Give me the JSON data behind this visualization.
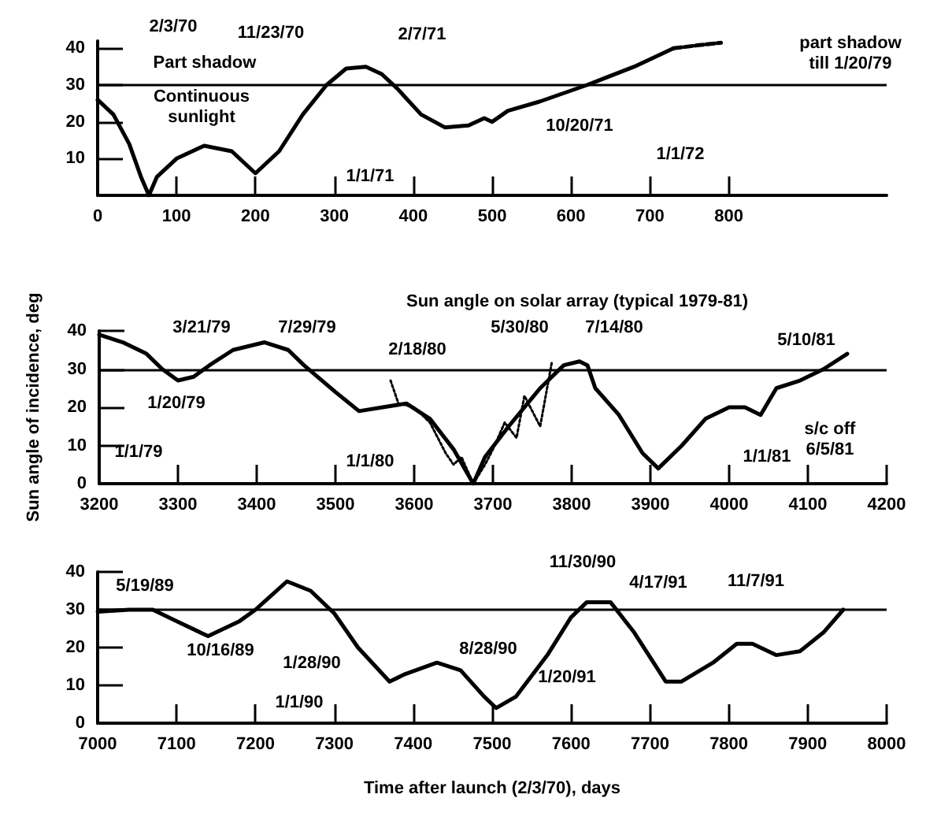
{
  "chart_data": [
    {
      "type": "line",
      "marker": "none",
      "ylim": [
        0,
        42
      ],
      "yticks": [
        10,
        20,
        30,
        40
      ],
      "xlim": [
        0,
        1000
      ],
      "xticks": [
        0,
        100,
        200,
        300,
        400,
        500,
        600,
        700,
        800
      ],
      "x": [
        0,
        20,
        40,
        55,
        65,
        75,
        100,
        135,
        170,
        200,
        230,
        260,
        290,
        315,
        340,
        360,
        380,
        410,
        440,
        470,
        490,
        500,
        520,
        560,
        620,
        680,
        730
      ],
      "series": [
        {
          "color": "#000000",
          "line_style": "solid",
          "values": [
            26,
            22,
            14,
            5,
            0,
            5,
            10,
            13.5,
            12,
            6,
            12,
            22,
            30,
            34.5,
            35,
            33,
            29,
            22,
            18.5,
            19,
            21,
            20,
            23,
            25.5,
            30,
            35,
            40
          ]
        },
        {
          "color": "#000000",
          "line_style": "dashed",
          "x": [
            730,
            760,
            790
          ],
          "values": [
            40,
            40.8,
            41.5
          ]
        }
      ],
      "ref_lines": [
        {
          "axis": "y",
          "value": 30
        }
      ],
      "annotations": [
        "2/3/70",
        "11/23/70",
        "2/7/71",
        "Part shadow",
        "Continuous\nsunlight",
        "10/20/71",
        "1/1/71",
        "1/1/72",
        "part shadow\ntill 1/20/79"
      ]
    },
    {
      "type": "line",
      "marker": "none",
      "title": "Sun angle on solar array (typical 1979-81)",
      "ylabel": "Sun angle of incidence, deg",
      "ylim": [
        0,
        40
      ],
      "yticks": [
        0,
        10,
        20,
        30,
        40
      ],
      "xlim": [
        3200,
        4200
      ],
      "xticks": [
        3200,
        3300,
        3400,
        3500,
        3600,
        3700,
        3800,
        3900,
        4000,
        4100,
        4200
      ],
      "x": [
        3200,
        3230,
        3260,
        3280,
        3300,
        3320,
        3340,
        3370,
        3410,
        3440,
        3460,
        3500,
        3530,
        3560,
        3590,
        3620,
        3650,
        3675,
        3690,
        3720,
        3760,
        3790,
        3810,
        3820,
        3830,
        3860,
        3890,
        3910,
        3940,
        3970,
        4000,
        4020,
        4040,
        4060,
        4090,
        4120,
        4150
      ],
      "series": [
        {
          "color": "#000000",
          "line_style": "solid",
          "values": [
            39,
            37,
            34,
            30,
            27,
            28,
            31,
            35,
            37,
            35,
            31,
            24,
            19,
            20,
            21,
            17,
            9,
            0,
            7,
            15,
            25,
            31,
            32,
            31,
            25,
            18,
            8,
            4,
            10,
            17,
            20,
            20,
            18,
            25,
            27,
            30,
            34
          ]
        },
        {
          "color": "#000000",
          "line_style": "dotted",
          "x": [
            3570,
            3580,
            3600,
            3620,
            3640,
            3650,
            3660,
            3675,
            3690,
            3700,
            3715,
            3730,
            3740,
            3760,
            3775
          ],
          "values": [
            27,
            21,
            20,
            16,
            8,
            5,
            7,
            0,
            5,
            9,
            16,
            12,
            23,
            15,
            32
          ]
        }
      ],
      "ref_lines": [
        {
          "axis": "y",
          "value": 30
        }
      ],
      "annotations": [
        "3/21/79",
        "7/29/79",
        "1/20/79",
        "1/1/79",
        "2/18/80",
        "1/1/80",
        "5/30/80",
        "7/14/80",
        "5/10/81",
        "1/1/81",
        "s/c off\n6/5/81"
      ]
    },
    {
      "type": "line",
      "marker": "none",
      "xlabel": "Time after launch (2/3/70), days",
      "ylim": [
        0,
        40
      ],
      "yticks": [
        0,
        10,
        20,
        30,
        40
      ],
      "xlim": [
        7000,
        8000
      ],
      "xticks": [
        7000,
        7100,
        7200,
        7300,
        7400,
        7500,
        7600,
        7700,
        7800,
        7900,
        8000
      ],
      "x": [
        7000,
        7040,
        7070,
        7100,
        7140,
        7180,
        7200,
        7240,
        7270,
        7300,
        7330,
        7370,
        7390,
        7430,
        7460,
        7490,
        7505,
        7530,
        7570,
        7600,
        7620,
        7650,
        7680,
        7720,
        7740,
        7780,
        7810,
        7830,
        7860,
        7890,
        7920,
        7945
      ],
      "series": [
        {
          "color": "#000000",
          "line_style": "solid",
          "values": [
            29.5,
            30,
            30,
            27,
            23,
            27,
            30,
            37.5,
            35,
            29,
            20,
            11,
            13,
            16,
            14,
            7,
            4,
            7,
            18,
            28,
            32,
            32,
            24,
            11,
            11,
            16,
            21,
            21,
            18,
            19,
            24,
            30
          ]
        }
      ],
      "ref_lines": [
        {
          "axis": "y",
          "value": 30
        }
      ],
      "annotations": [
        "5/19/89",
        "10/16/89",
        "1/28/90",
        "1/1/90",
        "8/28/90",
        "11/30/90",
        "1/20/91",
        "4/17/91",
        "11/7/91"
      ]
    }
  ]
}
